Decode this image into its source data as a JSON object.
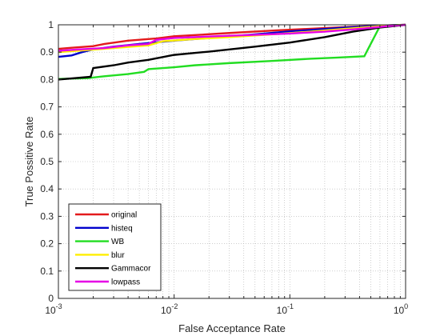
{
  "chart_data": {
    "type": "line",
    "title": "",
    "xlabel": "False Acceptance Rate",
    "ylabel": "True Possitive Rate",
    "xscale": "log",
    "xlim": [
      0.001,
      1
    ],
    "ylim": [
      0,
      1
    ],
    "x_ticks": [
      0.001,
      0.01,
      0.1,
      1
    ],
    "x_tick_labels": [
      {
        "base": "10",
        "exp": "-3"
      },
      {
        "base": "10",
        "exp": "-2"
      },
      {
        "base": "10",
        "exp": "-1"
      },
      {
        "base": "10",
        "exp": "0"
      }
    ],
    "y_ticks": [
      0,
      0.1,
      0.2,
      0.3,
      0.4,
      0.5,
      0.6,
      0.7,
      0.8,
      0.9,
      1
    ],
    "y_tick_labels": [
      "0",
      "0.1",
      "0.2",
      "0.3",
      "0.4",
      "0.5",
      "0.6",
      "0.7",
      "0.8",
      "0.9",
      "1"
    ],
    "grid": "dotted, minor on log x-axis",
    "legend_position": "bottom-left",
    "series": [
      {
        "name": "original",
        "color": "#e31a1c",
        "points": [
          [
            0.001,
            0.912
          ],
          [
            0.0013,
            0.916
          ],
          [
            0.002,
            0.922
          ],
          [
            0.0025,
            0.93
          ],
          [
            0.004,
            0.942
          ],
          [
            0.007,
            0.95
          ],
          [
            0.01,
            0.958
          ],
          [
            0.03,
            0.97
          ],
          [
            0.08,
            0.98
          ],
          [
            0.2,
            0.988
          ],
          [
            0.4,
            0.994
          ],
          [
            0.7,
            0.998
          ],
          [
            1,
            1
          ]
        ]
      },
      {
        "name": "histeq",
        "color": "#0000cc",
        "points": [
          [
            0.001,
            0.883
          ],
          [
            0.0013,
            0.888
          ],
          [
            0.0016,
            0.9
          ],
          [
            0.002,
            0.91
          ],
          [
            0.003,
            0.92
          ],
          [
            0.005,
            0.93
          ],
          [
            0.01,
            0.942
          ],
          [
            0.02,
            0.952
          ],
          [
            0.05,
            0.965
          ],
          [
            0.1,
            0.976
          ],
          [
            0.3,
            0.99
          ],
          [
            0.6,
            0.997
          ],
          [
            1,
            1
          ]
        ]
      },
      {
        "name": "WB",
        "color": "#22dd22",
        "points": [
          [
            0.001,
            0.802
          ],
          [
            0.0018,
            0.805
          ],
          [
            0.0025,
            0.812
          ],
          [
            0.004,
            0.82
          ],
          [
            0.0055,
            0.828
          ],
          [
            0.006,
            0.838
          ],
          [
            0.01,
            0.845
          ],
          [
            0.015,
            0.852
          ],
          [
            0.03,
            0.86
          ],
          [
            0.07,
            0.868
          ],
          [
            0.15,
            0.876
          ],
          [
            0.25,
            0.88
          ],
          [
            0.44,
            0.885
          ],
          [
            0.6,
            0.995
          ],
          [
            1,
            1
          ]
        ]
      },
      {
        "name": "blur",
        "color": "#ffee00",
        "points": [
          [
            0.001,
            0.9
          ],
          [
            0.003,
            0.915
          ],
          [
            0.006,
            0.925
          ],
          [
            0.008,
            0.94
          ],
          [
            0.015,
            0.948
          ],
          [
            0.03,
            0.955
          ],
          [
            0.07,
            0.965
          ],
          [
            0.15,
            0.975
          ],
          [
            0.3,
            0.985
          ],
          [
            0.6,
            0.995
          ],
          [
            1,
            1
          ]
        ]
      },
      {
        "name": "Gammacor",
        "color": "#000000",
        "points": [
          [
            0.001,
            0.8
          ],
          [
            0.0019,
            0.81
          ],
          [
            0.002,
            0.842
          ],
          [
            0.003,
            0.852
          ],
          [
            0.004,
            0.862
          ],
          [
            0.006,
            0.872
          ],
          [
            0.01,
            0.89
          ],
          [
            0.02,
            0.902
          ],
          [
            0.05,
            0.92
          ],
          [
            0.1,
            0.935
          ],
          [
            0.2,
            0.955
          ],
          [
            0.35,
            0.975
          ],
          [
            0.6,
            0.99
          ],
          [
            1,
            1
          ]
        ]
      },
      {
        "name": "lowpass",
        "color": "#e600e6",
        "points": [
          [
            0.001,
            0.905
          ],
          [
            0.0015,
            0.91
          ],
          [
            0.0025,
            0.915
          ],
          [
            0.004,
            0.925
          ],
          [
            0.006,
            0.93
          ],
          [
            0.007,
            0.945
          ],
          [
            0.01,
            0.952
          ],
          [
            0.03,
            0.96
          ],
          [
            0.1,
            0.968
          ],
          [
            0.2,
            0.975
          ],
          [
            0.4,
            0.985
          ],
          [
            0.7,
            0.995
          ],
          [
            1,
            1
          ]
        ]
      }
    ]
  }
}
